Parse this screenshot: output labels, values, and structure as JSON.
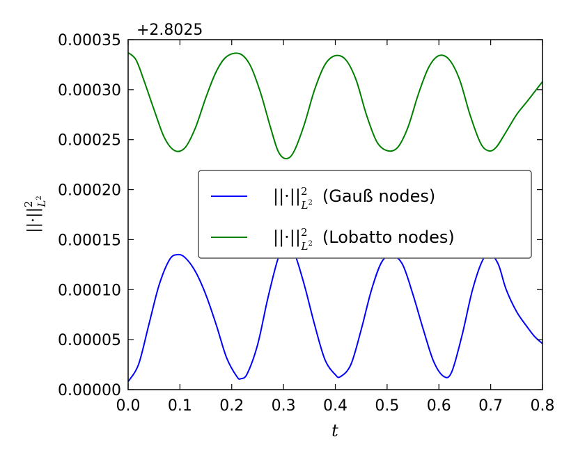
{
  "chart_data": {
    "type": "line",
    "offset_label": "+2.8025",
    "xlabel": "t",
    "ylabel_main": "||·||",
    "ylabel_sup": "2",
    "ylabel_sub": "L",
    "ylabel_subsup": "2",
    "xlim": [
      0.0,
      0.8
    ],
    "ylim": [
      0.0,
      0.00035
    ],
    "x_ticks": [
      "0.0",
      "0.1",
      "0.2",
      "0.3",
      "0.4",
      "0.5",
      "0.6",
      "0.7",
      "0.8"
    ],
    "y_ticks": [
      "0.00000",
      "0.00005",
      "0.00010",
      "0.00015",
      "0.00020",
      "0.00025",
      "0.00030",
      "0.00035"
    ],
    "legend_position": "center-right",
    "series": [
      {
        "legend_suffix": "(Gauß nodes)",
        "color": "#0000ff",
        "points": [
          [
            0.0,
            8e-06
          ],
          [
            0.02,
            2.5e-05
          ],
          [
            0.04,
            6.5e-05
          ],
          [
            0.06,
            0.000105
          ],
          [
            0.08,
            0.00013
          ],
          [
            0.095,
            0.000135
          ],
          [
            0.11,
            0.000132
          ],
          [
            0.13,
            0.000118
          ],
          [
            0.15,
            9.5e-05
          ],
          [
            0.17,
            6.5e-05
          ],
          [
            0.19,
            3.2e-05
          ],
          [
            0.21,
            1.3e-05
          ],
          [
            0.218,
            1.1e-05
          ],
          [
            0.23,
            1.6e-05
          ],
          [
            0.25,
            4.5e-05
          ],
          [
            0.27,
            9.2e-05
          ],
          [
            0.29,
            0.000132
          ],
          [
            0.305,
            0.000145
          ],
          [
            0.32,
            0.000138
          ],
          [
            0.34,
            0.000105
          ],
          [
            0.36,
            6.5e-05
          ],
          [
            0.38,
            3e-05
          ],
          [
            0.4,
            1.5e-05
          ],
          [
            0.41,
            1.3e-05
          ],
          [
            0.43,
            2.5e-05
          ],
          [
            0.45,
            6e-05
          ],
          [
            0.47,
            0.0001
          ],
          [
            0.49,
            0.000128
          ],
          [
            0.51,
            0.000134
          ],
          [
            0.53,
            0.000125
          ],
          [
            0.55,
            9.5e-05
          ],
          [
            0.57,
            6e-05
          ],
          [
            0.59,
            2.8e-05
          ],
          [
            0.61,
            1.3e-05
          ],
          [
            0.625,
            1.8e-05
          ],
          [
            0.645,
            5.5e-05
          ],
          [
            0.665,
            0.0001
          ],
          [
            0.685,
            0.00013
          ],
          [
            0.7,
            0.000135
          ],
          [
            0.715,
            0.000125
          ],
          [
            0.73,
            0.0001
          ],
          [
            0.75,
            7.8e-05
          ],
          [
            0.77,
            6.3e-05
          ],
          [
            0.785,
            5.3e-05
          ],
          [
            0.8,
            4.6e-05
          ]
        ]
      },
      {
        "legend_suffix": "(Lobatto nodes)",
        "color": "#008000",
        "points": [
          [
            0.0,
            0.000337
          ],
          [
            0.015,
            0.00033
          ],
          [
            0.03,
            0.00031
          ],
          [
            0.05,
            0.00028
          ],
          [
            0.07,
            0.000252
          ],
          [
            0.09,
            0.000239
          ],
          [
            0.11,
            0.000242
          ],
          [
            0.13,
            0.000262
          ],
          [
            0.15,
            0.000292
          ],
          [
            0.17,
            0.000318
          ],
          [
            0.19,
            0.000333
          ],
          [
            0.215,
            0.000336
          ],
          [
            0.235,
            0.000325
          ],
          [
            0.255,
            0.000298
          ],
          [
            0.275,
            0.000262
          ],
          [
            0.29,
            0.000238
          ],
          [
            0.305,
            0.000231
          ],
          [
            0.32,
            0.000238
          ],
          [
            0.34,
            0.000265
          ],
          [
            0.36,
            0.0003
          ],
          [
            0.38,
            0.000325
          ],
          [
            0.4,
            0.000334
          ],
          [
            0.42,
            0.00033
          ],
          [
            0.44,
            0.00031
          ],
          [
            0.46,
            0.000275
          ],
          [
            0.48,
            0.000248
          ],
          [
            0.5,
            0.000239
          ],
          [
            0.52,
            0.000242
          ],
          [
            0.54,
            0.000262
          ],
          [
            0.56,
            0.000295
          ],
          [
            0.58,
            0.000322
          ],
          [
            0.6,
            0.000334
          ],
          [
            0.62,
            0.00033
          ],
          [
            0.64,
            0.00031
          ],
          [
            0.66,
            0.000275
          ],
          [
            0.68,
            0.000247
          ],
          [
            0.695,
            0.000239
          ],
          [
            0.71,
            0.000242
          ],
          [
            0.73,
            0.000258
          ],
          [
            0.75,
            0.000275
          ],
          [
            0.77,
            0.000288
          ],
          [
            0.785,
            0.000298
          ],
          [
            0.8,
            0.000308
          ]
        ]
      }
    ]
  }
}
